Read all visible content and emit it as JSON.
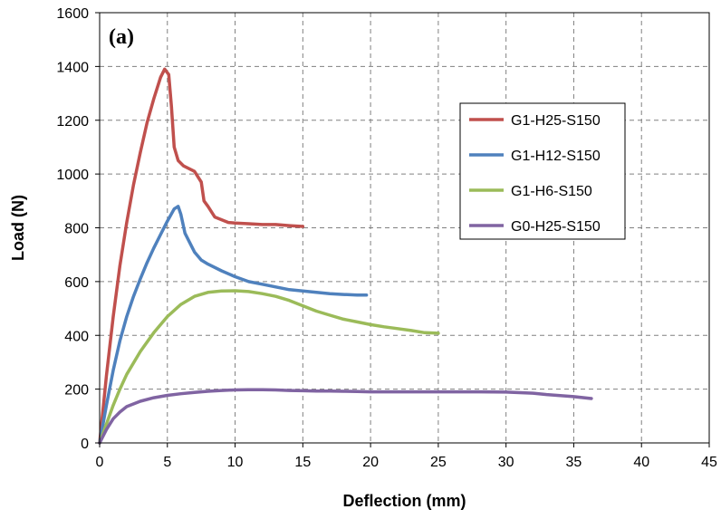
{
  "chart_data": {
    "type": "line",
    "panel_label": "(a)",
    "title": "",
    "xlabel": "Deflection (mm)",
    "ylabel": "Load (N)",
    "xlim": [
      0,
      45
    ],
    "ylim": [
      0,
      1600
    ],
    "xticks": [
      0,
      5,
      10,
      15,
      20,
      25,
      30,
      35,
      40,
      45
    ],
    "yticks": [
      0,
      200,
      400,
      600,
      800,
      1000,
      1200,
      1400,
      1600
    ],
    "grid": "dashed",
    "legend_position": "right",
    "series": [
      {
        "name": "G1-H25-S150",
        "color": "#c0504d",
        "points": [
          [
            0,
            0
          ],
          [
            0.5,
            250
          ],
          [
            1,
            470
          ],
          [
            1.5,
            660
          ],
          [
            2,
            820
          ],
          [
            2.5,
            960
          ],
          [
            3,
            1080
          ],
          [
            3.5,
            1190
          ],
          [
            4,
            1280
          ],
          [
            4.5,
            1360
          ],
          [
            4.8,
            1390
          ],
          [
            5.1,
            1370
          ],
          [
            5.3,
            1250
          ],
          [
            5.5,
            1100
          ],
          [
            5.8,
            1050
          ],
          [
            6.2,
            1030
          ],
          [
            7,
            1010
          ],
          [
            7.5,
            970
          ],
          [
            7.7,
            900
          ],
          [
            8,
            880
          ],
          [
            8.5,
            840
          ],
          [
            9,
            830
          ],
          [
            9.5,
            820
          ],
          [
            10,
            818
          ],
          [
            11,
            815
          ],
          [
            12,
            812
          ],
          [
            13,
            812
          ],
          [
            14,
            808
          ],
          [
            15,
            805
          ]
        ]
      },
      {
        "name": "G1-H12-S150",
        "color": "#4f81bd",
        "points": [
          [
            0,
            0
          ],
          [
            0.5,
            140
          ],
          [
            1,
            270
          ],
          [
            1.5,
            380
          ],
          [
            2,
            470
          ],
          [
            2.5,
            545
          ],
          [
            3,
            610
          ],
          [
            3.5,
            670
          ],
          [
            4,
            725
          ],
          [
            4.5,
            775
          ],
          [
            5,
            825
          ],
          [
            5.5,
            870
          ],
          [
            5.8,
            880
          ],
          [
            6,
            850
          ],
          [
            6.3,
            780
          ],
          [
            6.7,
            740
          ],
          [
            7,
            710
          ],
          [
            7.5,
            680
          ],
          [
            8,
            665
          ],
          [
            9,
            640
          ],
          [
            10,
            618
          ],
          [
            11,
            600
          ],
          [
            12,
            590
          ],
          [
            13,
            580
          ],
          [
            14,
            570
          ],
          [
            15,
            565
          ],
          [
            16,
            560
          ],
          [
            17,
            555
          ],
          [
            18,
            552
          ],
          [
            19,
            550
          ],
          [
            19.7,
            550
          ]
        ]
      },
      {
        "name": "G1-H6-S150",
        "color": "#9bbb59",
        "points": [
          [
            0,
            0
          ],
          [
            0.5,
            70
          ],
          [
            1,
            140
          ],
          [
            1.5,
            200
          ],
          [
            2,
            255
          ],
          [
            3,
            340
          ],
          [
            4,
            410
          ],
          [
            5,
            470
          ],
          [
            6,
            515
          ],
          [
            7,
            545
          ],
          [
            8,
            560
          ],
          [
            9,
            565
          ],
          [
            10,
            566
          ],
          [
            11,
            563
          ],
          [
            12,
            555
          ],
          [
            13,
            545
          ],
          [
            14,
            530
          ],
          [
            15,
            510
          ],
          [
            16,
            490
          ],
          [
            17,
            475
          ],
          [
            18,
            460
          ],
          [
            19,
            450
          ],
          [
            20,
            440
          ],
          [
            21,
            432
          ],
          [
            22,
            425
          ],
          [
            23,
            418
          ],
          [
            24,
            410
          ],
          [
            25,
            408
          ]
        ]
      },
      {
        "name": "G0-H25-S150",
        "color": "#8064a2",
        "points": [
          [
            0,
            0
          ],
          [
            0.5,
            50
          ],
          [
            1,
            90
          ],
          [
            1.5,
            115
          ],
          [
            2,
            135
          ],
          [
            3,
            155
          ],
          [
            4,
            168
          ],
          [
            5,
            177
          ],
          [
            6,
            183
          ],
          [
            7,
            188
          ],
          [
            8,
            192
          ],
          [
            9,
            195
          ],
          [
            10,
            197
          ],
          [
            11,
            198
          ],
          [
            12,
            198
          ],
          [
            13,
            197
          ],
          [
            14,
            195
          ],
          [
            15,
            194
          ],
          [
            16,
            193
          ],
          [
            17,
            193
          ],
          [
            18,
            192
          ],
          [
            19,
            191
          ],
          [
            20,
            190
          ],
          [
            22,
            190
          ],
          [
            24,
            190
          ],
          [
            26,
            190
          ],
          [
            28,
            190
          ],
          [
            30,
            189
          ],
          [
            32,
            185
          ],
          [
            33,
            180
          ],
          [
            35,
            172
          ],
          [
            36.3,
            165
          ]
        ]
      }
    ]
  }
}
